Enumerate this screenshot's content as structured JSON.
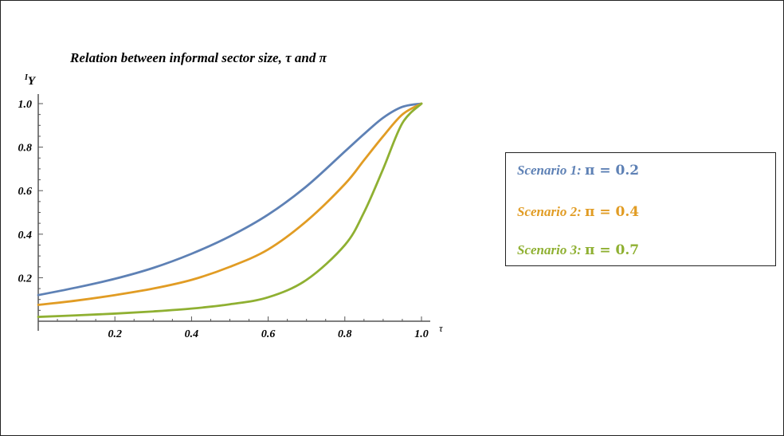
{
  "chart_data": {
    "type": "line",
    "title": "Relation between informal sector size,  τ and π",
    "xlabel": "τ",
    "ylabel_superscript": "I",
    "ylabel": "Y",
    "xlim": [
      0,
      1.0
    ],
    "ylim": [
      0,
      1.0
    ],
    "x_ticks": [
      "0.2",
      "0.4",
      "0.6",
      "0.8",
      "1.0"
    ],
    "y_ticks": [
      "0.2",
      "0.4",
      "0.6",
      "0.8",
      "1.0"
    ],
    "grid": false,
    "legend_position": "right",
    "x": [
      0,
      0.1,
      0.2,
      0.3,
      0.4,
      0.5,
      0.6,
      0.7,
      0.8,
      0.85,
      0.9,
      0.95,
      1.0
    ],
    "series": [
      {
        "name": "Scenario 1: π = 0.2",
        "label_text": "Scenario 1: ",
        "label_value": "π = 0.2",
        "color": "#5e81b5",
        "values": [
          0.12,
          0.155,
          0.195,
          0.245,
          0.31,
          0.39,
          0.49,
          0.62,
          0.78,
          0.86,
          0.935,
          0.985,
          1.0
        ]
      },
      {
        "name": "Scenario 2: π = 0.4",
        "label_text": "Scenario 2: ",
        "label_value": "π = 0.4",
        "color": "#e19c24",
        "values": [
          0.075,
          0.095,
          0.12,
          0.15,
          0.19,
          0.25,
          0.33,
          0.46,
          0.63,
          0.74,
          0.85,
          0.95,
          1.0
        ]
      },
      {
        "name": "Scenario 3: π = 0.7",
        "label_text": "Scenario 3: ",
        "label_value": "π = 0.7",
        "color": "#8fb032",
        "values": [
          0.02,
          0.027,
          0.035,
          0.045,
          0.058,
          0.078,
          0.11,
          0.19,
          0.35,
          0.5,
          0.7,
          0.91,
          1.0
        ]
      }
    ]
  }
}
